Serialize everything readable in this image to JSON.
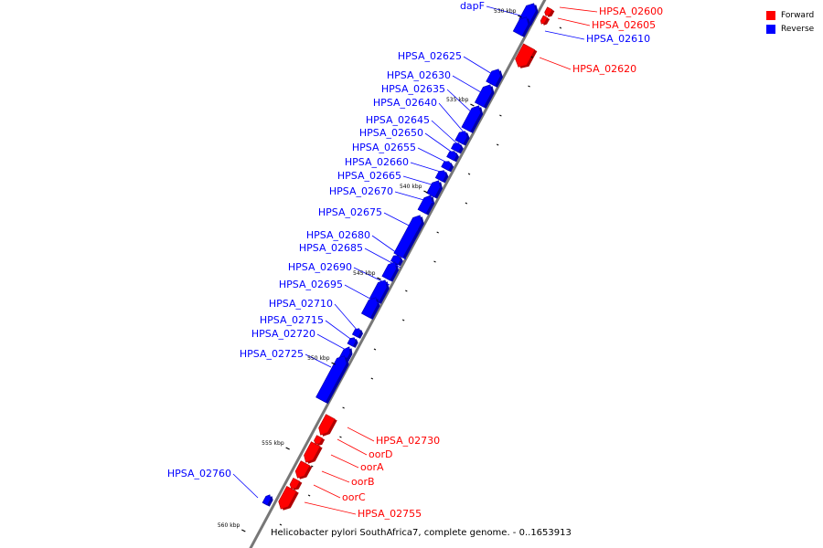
{
  "colors": {
    "forward": "#ff0000",
    "reverse": "#0000ff",
    "forward_side": "#b00000",
    "reverse_side": "#0000a8",
    "backbone": "#777777"
  },
  "legend": {
    "forward_label": "Forward",
    "reverse_label": "Reverse"
  },
  "caption": "Helicobacter pylori SouthAfrica7, complete genome. - 0..1653913",
  "scale_unit": "kbp",
  "ticks_kbp": [
    530,
    535,
    540,
    545,
    550,
    555,
    560
  ],
  "genes": [
    {
      "name": "dapF",
      "strand": "reverse"
    },
    {
      "name": "HPSA_02600",
      "strand": "forward"
    },
    {
      "name": "HPSA_02605",
      "strand": "forward"
    },
    {
      "name": "HPSA_02610",
      "strand": "reverse"
    },
    {
      "name": "HPSA_02620",
      "strand": "forward"
    },
    {
      "name": "HPSA_02625",
      "strand": "reverse"
    },
    {
      "name": "HPSA_02630",
      "strand": "reverse"
    },
    {
      "name": "HPSA_02635",
      "strand": "reverse"
    },
    {
      "name": "HPSA_02640",
      "strand": "reverse"
    },
    {
      "name": "HPSA_02645",
      "strand": "reverse"
    },
    {
      "name": "HPSA_02650",
      "strand": "reverse"
    },
    {
      "name": "HPSA_02655",
      "strand": "reverse"
    },
    {
      "name": "HPSA_02660",
      "strand": "reverse"
    },
    {
      "name": "HPSA_02665",
      "strand": "reverse"
    },
    {
      "name": "HPSA_02670",
      "strand": "reverse"
    },
    {
      "name": "HPSA_02675",
      "strand": "reverse"
    },
    {
      "name": "HPSA_02680",
      "strand": "reverse"
    },
    {
      "name": "HPSA_02685",
      "strand": "reverse"
    },
    {
      "name": "HPSA_02690",
      "strand": "reverse"
    },
    {
      "name": "HPSA_02695",
      "strand": "reverse"
    },
    {
      "name": "HPSA_02710",
      "strand": "reverse"
    },
    {
      "name": "HPSA_02715",
      "strand": "reverse"
    },
    {
      "name": "HPSA_02720",
      "strand": "reverse"
    },
    {
      "name": "HPSA_02725",
      "strand": "reverse"
    },
    {
      "name": "HPSA_02730",
      "strand": "forward"
    },
    {
      "name": "oorD",
      "strand": "forward"
    },
    {
      "name": "oorA",
      "strand": "forward"
    },
    {
      "name": "oorB",
      "strand": "forward"
    },
    {
      "name": "oorC",
      "strand": "forward"
    },
    {
      "name": "HPSA_02755",
      "strand": "forward"
    },
    {
      "name": "HPSA_02760",
      "strand": "reverse"
    }
  ]
}
